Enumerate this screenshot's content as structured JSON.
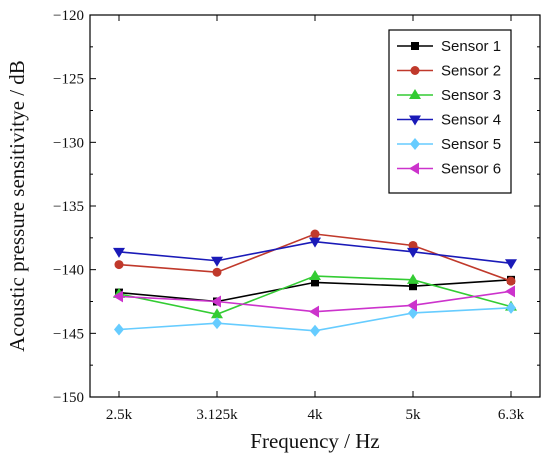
{
  "chart_data": {
    "type": "line",
    "xlabel": "Frequency / Hz",
    "ylabel": "Acoustic pressure sensitivitye / dB",
    "categories": [
      "2.5k",
      "3.125k",
      "4k",
      "5k",
      "6.3k"
    ],
    "ylim": [
      -150,
      -120
    ],
    "yticks": [
      -150,
      -145,
      -140,
      -135,
      -130,
      -125,
      -120
    ],
    "grid": false,
    "legend_position": "top-right",
    "series": [
      {
        "name": "Sensor 1",
        "color": "#000000",
        "marker": "square",
        "values": [
          -141.8,
          -142.5,
          -141.0,
          -141.3,
          -140.8
        ]
      },
      {
        "name": "Sensor 2",
        "color": "#c0392b",
        "marker": "circle",
        "values": [
          -139.6,
          -140.2,
          -137.2,
          -138.1,
          -140.9
        ]
      },
      {
        "name": "Sensor 3",
        "color": "#33cc33",
        "marker": "triangle-up",
        "values": [
          -141.9,
          -143.5,
          -140.5,
          -140.8,
          -142.9
        ]
      },
      {
        "name": "Sensor 4",
        "color": "#1a1ab8",
        "marker": "triangle-down",
        "values": [
          -138.6,
          -139.3,
          -137.8,
          -138.6,
          -139.5
        ]
      },
      {
        "name": "Sensor 5",
        "color": "#66ccff",
        "marker": "diamond",
        "values": [
          -144.7,
          -144.2,
          -144.8,
          -143.4,
          -143.0
        ]
      },
      {
        "name": "Sensor 6",
        "color": "#cc33cc",
        "marker": "triangle-left",
        "values": [
          -142.1,
          -142.5,
          -143.3,
          -142.8,
          -141.7
        ]
      }
    ]
  }
}
